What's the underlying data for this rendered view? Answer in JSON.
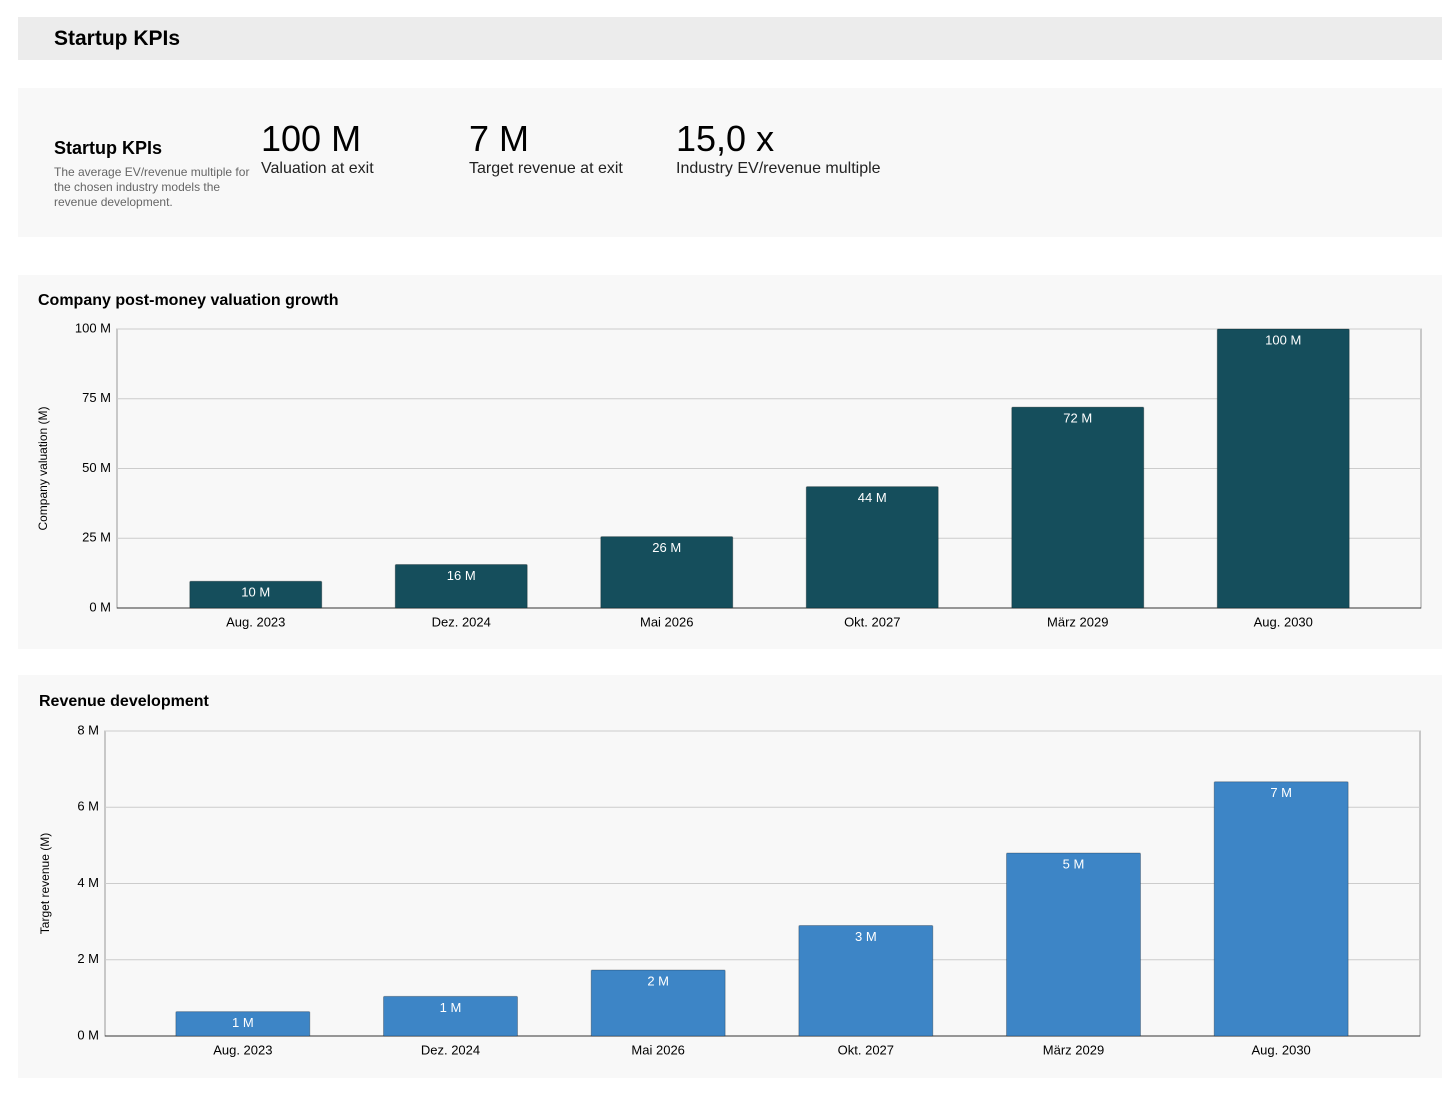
{
  "header": {
    "title": "Startup KPIs"
  },
  "kpis": {
    "title": "Startup KPIs",
    "description": "The average EV/revenue multiple for the chosen industry models the revenue development.",
    "items": [
      {
        "value": "100 M",
        "label": "Valuation at exit"
      },
      {
        "value": "7 M",
        "label": "Target revenue at exit"
      },
      {
        "value": "15,0 x",
        "label": "Industry EV/revenue multiple"
      }
    ]
  },
  "chart_data": [
    {
      "type": "bar",
      "title": "Company post-money valuation growth",
      "y_label": "Company valuation (M)",
      "categories": [
        "Aug. 2023",
        "Dez. 2024",
        "Mai 2026",
        "Okt. 2027",
        "März 2029",
        "Aug. 2030"
      ],
      "values": [
        9.6,
        15.6,
        25.6,
        43.5,
        72,
        100
      ],
      "value_labels": [
        "10 M",
        "16 M",
        "26 M",
        "44 M",
        "72 M",
        "100 M"
      ],
      "color": "#154e5c",
      "ylim": [
        0,
        100
      ],
      "yticks": [
        {
          "value": 0,
          "label": "0 M"
        },
        {
          "value": 25,
          "label": "25 M"
        },
        {
          "value": 50,
          "label": "50 M"
        },
        {
          "value": 75,
          "label": "75 M"
        },
        {
          "value": 100,
          "label": "100 M"
        }
      ],
      "grid": true
    },
    {
      "type": "bar",
      "title": "Revenue development",
      "y_label": "Target revenue (M)",
      "categories": [
        "Aug. 2023",
        "Dez. 2024",
        "Mai 2026",
        "Okt. 2027",
        "März 2029",
        "Aug. 2030"
      ],
      "values": [
        0.64,
        1.04,
        1.73,
        2.9,
        4.8,
        6.67
      ],
      "value_labels": [
        "1 M",
        "1 M",
        "2 M",
        "3 M",
        "5 M",
        "7 M"
      ],
      "color": "#3d85c6",
      "ylim": [
        0,
        8
      ],
      "yticks": [
        {
          "value": 0,
          "label": "0 M"
        },
        {
          "value": 2,
          "label": "2 M"
        },
        {
          "value": 4,
          "label": "4 M"
        },
        {
          "value": 6,
          "label": "6 M"
        },
        {
          "value": 8,
          "label": "8 M"
        }
      ],
      "grid": true
    }
  ]
}
